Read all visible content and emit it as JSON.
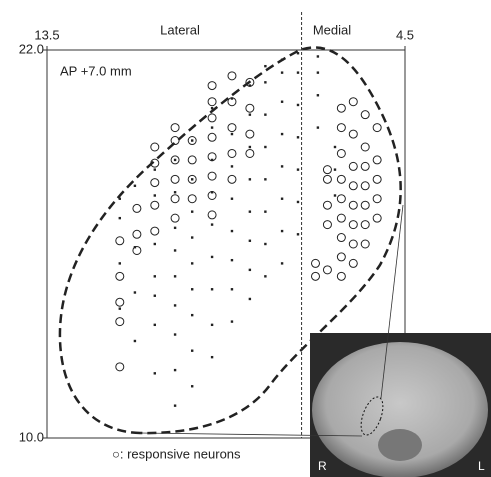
{
  "chart_data": {
    "type": "scatter",
    "axis_labels_top": [
      "Lateral",
      "Medial"
    ],
    "annotations": [
      "AP +7.0 mm",
      "R",
      "L"
    ],
    "xlim": [
      13.5,
      4.5
    ],
    "xticks": [
      13.5,
      4.5
    ],
    "ylim": [
      10,
      22
    ],
    "yticks": [
      {
        "value": 22,
        "label": "22.0"
      },
      {
        "value": 10,
        "label": "10.0"
      }
    ],
    "divider_x": 7.1,
    "series": [
      {
        "marker": "dot",
        "color": "#222222",
        "x": [
          11.67,
          11.67,
          11.67,
          11.67,
          11.29,
          11.29,
          11.29,
          11.29,
          10.79,
          10.79,
          10.79,
          10.79,
          10.79,
          10.79,
          10.79,
          10.28,
          10.28,
          10.28,
          10.28,
          10.28,
          10.28,
          10.28,
          10.28,
          10.28,
          9.85,
          9.85,
          9.85,
          9.85,
          9.85,
          9.85,
          9.85,
          9.85,
          9.85,
          9.35,
          9.35,
          9.35,
          9.35,
          9.35,
          9.35,
          9.35,
          9.35,
          9.35,
          8.85,
          8.85,
          8.85,
          8.85,
          8.85,
          8.85,
          8.85,
          8.85,
          8.4,
          8.4,
          8.4,
          8.4,
          8.4,
          8.4,
          8.4,
          8.4,
          8.01,
          8.01,
          8.01,
          8.01,
          8.01,
          8.01,
          8.01,
          8.01,
          7.59,
          7.59,
          7.59,
          7.59,
          7.59,
          7.59,
          7.59,
          7.59,
          7.19,
          7.19,
          7.19,
          7.19,
          7.19,
          7.19,
          7.19,
          6.69,
          6.69,
          6.69,
          6.69,
          6.26,
          6.26,
          6.26
        ],
        "values": [
          14.0,
          15.4,
          16.8,
          17.4,
          13.0,
          14.5,
          15.9,
          17.8,
          12.0,
          13.5,
          14.4,
          15.0,
          16.0,
          17.5,
          18.3,
          11.0,
          12.1,
          13.2,
          14.1,
          15.0,
          15.8,
          16.5,
          17.6,
          18.6,
          11.6,
          12.7,
          13.8,
          14.6,
          15.4,
          16.2,
          17.0,
          18.0,
          19.2,
          12.5,
          13.5,
          14.6,
          15.6,
          16.6,
          17.6,
          18.6,
          19.6,
          20.2,
          13.6,
          14.6,
          15.5,
          16.4,
          17.4,
          18.4,
          19.4,
          20.5,
          14.3,
          15.2,
          16.1,
          17.0,
          18.0,
          19.0,
          20.0,
          20.9,
          15.0,
          16.0,
          17.0,
          18.0,
          19.0,
          20.0,
          21.0,
          21.5,
          15.4,
          16.4,
          17.4,
          18.4,
          19.4,
          20.4,
          21.3,
          21.7,
          16.3,
          17.3,
          18.3,
          19.3,
          20.3,
          21.3,
          21.9,
          19.6,
          20.6,
          21.3,
          21.8,
          17.5,
          18.3,
          19.0
        ]
      },
      {
        "marker": "circle",
        "name": "○: responsive neurons",
        "color": "#222222",
        "x": [
          11.67,
          11.67,
          11.67,
          11.67,
          11.67,
          11.24,
          11.24,
          11.24,
          10.79,
          10.79,
          10.79,
          10.79,
          10.79,
          10.28,
          10.28,
          10.28,
          10.28,
          10.28,
          10.28,
          9.85,
          9.85,
          9.85,
          9.85,
          9.35,
          9.35,
          9.35,
          9.35,
          9.35,
          9.35,
          9.35,
          9.35,
          8.85,
          8.85,
          8.85,
          8.85,
          8.85,
          8.4,
          8.4,
          8.4,
          8.4,
          6.75,
          6.75,
          6.45,
          6.45,
          6.45,
          6.45,
          6.45,
          6.1,
          6.1,
          6.1,
          6.1,
          6.1,
          6.1,
          6.1,
          6.1,
          6.1,
          5.8,
          5.8,
          5.8,
          5.8,
          5.8,
          5.8,
          5.8,
          5.8,
          5.5,
          5.5,
          5.5,
          5.5,
          5.5,
          5.5,
          5.5,
          5.2,
          5.2,
          5.2,
          5.2,
          5.2
        ],
        "values": [
          12.2,
          13.6,
          14.2,
          15.0,
          16.1,
          15.8,
          16.3,
          17.1,
          16.4,
          17.2,
          17.9,
          18.5,
          19.0,
          16.8,
          17.4,
          18.0,
          18.6,
          19.2,
          19.6,
          17.4,
          18.0,
          18.6,
          19.2,
          16.9,
          17.5,
          18.1,
          18.7,
          19.3,
          19.9,
          20.4,
          20.9,
          18.0,
          18.8,
          19.6,
          20.4,
          21.2,
          18.8,
          19.4,
          20.2,
          21.0,
          15.0,
          15.4,
          15.2,
          16.6,
          17.2,
          18.0,
          18.3,
          15.0,
          15.6,
          16.2,
          16.8,
          17.4,
          18.0,
          18.8,
          19.6,
          20.2,
          15.4,
          16.0,
          16.6,
          17.2,
          17.8,
          18.4,
          19.4,
          20.4,
          16.0,
          16.6,
          17.2,
          17.8,
          18.4,
          19.0,
          20.0,
          16.8,
          17.4,
          18.0,
          18.6,
          19.6
        ]
      }
    ]
  }
}
